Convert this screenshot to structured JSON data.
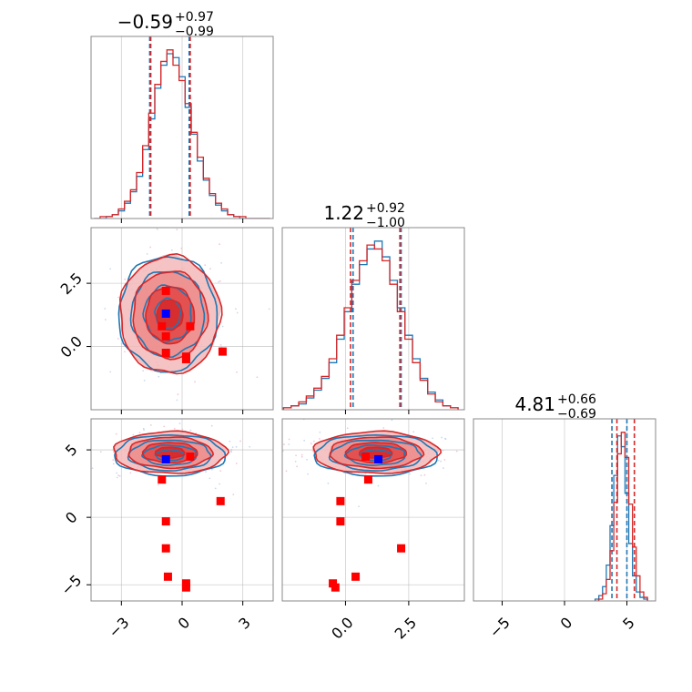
{
  "chart_data": {
    "type": "corner",
    "series_colors": {
      "a": "#1f77b4",
      "b": "#d62728",
      "truth_a": "#0000ff",
      "truth_b": "#ff0000"
    },
    "panels": [
      {
        "id": "hist-0",
        "kind": "hist",
        "row": 0,
        "col": 0,
        "xlim": [
          -4.5,
          4.5
        ],
        "title": {
          "main": "−0.59",
          "upper": "+0.97",
          "lower": "−0.99"
        },
        "quantiles_a": [
          -1.6,
          0.35
        ],
        "quantiles_b": [
          -1.55,
          0.4
        ],
        "hist_x": [
          -4.2,
          -3.9,
          -3.6,
          -3.3,
          -3.0,
          -2.7,
          -2.4,
          -2.1,
          -1.8,
          -1.5,
          -1.2,
          -0.9,
          -0.6,
          -0.3,
          0.0,
          0.3,
          0.6,
          0.9,
          1.2,
          1.5,
          1.8,
          2.1,
          2.4,
          2.7,
          3.0,
          3.3,
          3.6,
          3.9,
          4.2
        ],
        "hist_a": [
          0,
          0,
          1,
          2,
          4,
          8,
          14,
          22,
          36,
          52,
          68,
          80,
          86,
          84,
          74,
          58,
          44,
          30,
          20,
          12,
          7,
          4,
          2,
          1,
          0,
          0,
          0,
          0,
          0
        ],
        "hist_b": [
          0,
          1,
          1,
          2,
          5,
          9,
          15,
          24,
          38,
          55,
          70,
          82,
          88,
          80,
          72,
          60,
          45,
          32,
          21,
          13,
          8,
          5,
          2,
          1,
          1,
          0,
          0,
          0,
          0
        ]
      },
      {
        "id": "scatter-1-0",
        "kind": "2d",
        "row": 1,
        "col": 0,
        "xlim": [
          -4.5,
          4.5
        ],
        "ylim": [
          -2.5,
          4.7
        ],
        "yticks": [
          "0.0",
          "2.5"
        ],
        "center_a": [
          -0.7,
          1.3
        ],
        "center_b": [
          -0.6,
          1.25
        ],
        "spread": [
          1.6,
          1.5
        ],
        "truth_a": [
          [
            -0.8,
            1.3
          ]
        ],
        "truth_b": [
          [
            -0.8,
            2.2
          ],
          [
            -1.0,
            0.8
          ],
          [
            -0.8,
            0.4
          ],
          [
            0.4,
            0.8
          ],
          [
            -0.8,
            -0.25
          ],
          [
            0.2,
            -0.4
          ],
          [
            0.2,
            -0.5
          ],
          [
            2.0,
            -0.2
          ]
        ]
      },
      {
        "id": "hist-1",
        "kind": "hist",
        "row": 1,
        "col": 1,
        "xlim": [
          -2.5,
          4.7
        ],
        "title": {
          "main": "1.22",
          "upper": "+0.92",
          "lower": "−1.00"
        },
        "quantiles_a": [
          0.3,
          2.2
        ],
        "quantiles_b": [
          0.2,
          2.15
        ],
        "hist_x": [
          -2.3,
          -2.0,
          -1.7,
          -1.4,
          -1.1,
          -0.8,
          -0.5,
          -0.2,
          0.1,
          0.4,
          0.7,
          1.0,
          1.3,
          1.6,
          1.9,
          2.2,
          2.5,
          2.8,
          3.1,
          3.4,
          3.7,
          4.0,
          4.3
        ],
        "hist_a": [
          1,
          2,
          3,
          6,
          10,
          16,
          24,
          36,
          50,
          64,
          74,
          82,
          86,
          78,
          66,
          52,
          38,
          26,
          16,
          9,
          5,
          2,
          1
        ],
        "hist_b": [
          1,
          2,
          4,
          7,
          11,
          17,
          26,
          38,
          52,
          66,
          76,
          84,
          82,
          76,
          64,
          50,
          36,
          24,
          15,
          8,
          4,
          2,
          1
        ]
      },
      {
        "id": "scatter-2-0",
        "kind": "2d",
        "row": 2,
        "col": 0,
        "xlim": [
          -4.5,
          4.5
        ],
        "ylim": [
          -6.2,
          7.3
        ],
        "yticks": [
          "−5",
          "0",
          "5"
        ],
        "center_a": [
          -0.6,
          4.6
        ],
        "center_b": [
          -0.6,
          4.8
        ],
        "spread": [
          1.8,
          1.0
        ],
        "truth_a": [
          [
            -0.8,
            4.3
          ]
        ],
        "truth_b": [
          [
            0.4,
            4.5
          ],
          [
            -1.0,
            2.8
          ],
          [
            1.9,
            1.2
          ],
          [
            -0.8,
            -0.3
          ],
          [
            -0.8,
            -2.3
          ],
          [
            -0.7,
            -4.4
          ],
          [
            0.2,
            -4.9
          ],
          [
            0.2,
            -5.2
          ]
        ]
      },
      {
        "id": "scatter-2-1",
        "kind": "2d",
        "row": 2,
        "col": 1,
        "xlim": [
          -2.5,
          4.7
        ],
        "ylim": [
          -6.2,
          7.3
        ],
        "center_a": [
          1.2,
          4.6
        ],
        "center_b": [
          1.2,
          4.8
        ],
        "spread": [
          1.6,
          1.0
        ],
        "truth_a": [
          [
            1.3,
            4.3
          ]
        ],
        "truth_b": [
          [
            0.8,
            4.5
          ],
          [
            0.9,
            2.8
          ],
          [
            -0.2,
            1.2
          ],
          [
            -0.2,
            -0.3
          ],
          [
            2.2,
            -2.3
          ],
          [
            0.4,
            -4.4
          ],
          [
            -0.5,
            -4.9
          ],
          [
            -0.4,
            -5.2
          ]
        ]
      },
      {
        "id": "hist-2",
        "kind": "hist",
        "row": 2,
        "col": 2,
        "xlim": [
          -7.3,
          7.3
        ],
        "title": {
          "main": "4.81",
          "upper": "+0.66",
          "lower": "−0.69"
        },
        "quantiles_a": [
          3.8,
          5.0
        ],
        "quantiles_b": [
          4.2,
          5.6
        ],
        "hist_x": [
          2.6,
          2.9,
          3.2,
          3.5,
          3.8,
          4.1,
          4.4,
          4.7,
          5.0,
          5.3,
          5.6,
          5.9,
          6.2,
          6.5
        ],
        "hist_a": [
          1,
          3,
          8,
          20,
          42,
          70,
          92,
          86,
          60,
          32,
          14,
          5,
          2,
          1
        ],
        "hist_b": [
          0,
          1,
          4,
          12,
          28,
          55,
          82,
          94,
          80,
          54,
          30,
          14,
          5,
          2
        ]
      }
    ],
    "x_tick_labels": {
      "col0": [
        "−3",
        "0",
        "3"
      ],
      "col1": [
        "0.0",
        "2.5"
      ],
      "col2": [
        "−5",
        "0",
        "5"
      ]
    },
    "tick_values": {
      "col0": [
        -3,
        0,
        3
      ],
      "col1": [
        0.0,
        2.5
      ],
      "col2": [
        -5,
        0,
        5
      ],
      "row1": [
        0.0,
        2.5
      ],
      "row2": [
        -5,
        0,
        5
      ]
    },
    "grid": true
  }
}
